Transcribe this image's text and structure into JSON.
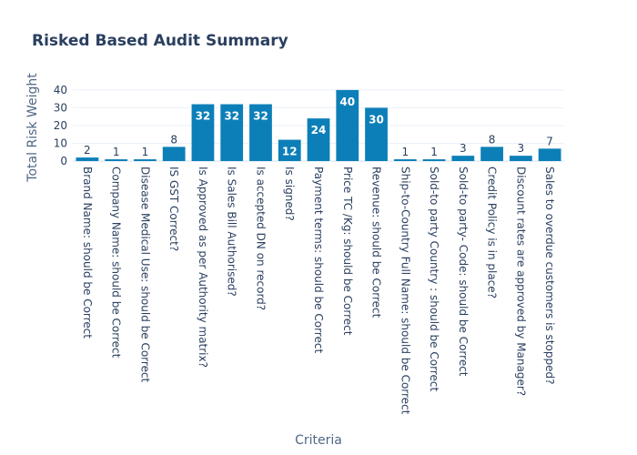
{
  "chart_data": {
    "type": "bar",
    "title": "Risked Based Audit Summary",
    "xlabel": "Criteria",
    "ylabel": "Total Risk Weight",
    "ylim": [
      0,
      42
    ],
    "yticks": [
      0,
      10,
      20,
      30,
      40
    ],
    "grid": true,
    "legend": "none",
    "bar_color": "#0d7fb8",
    "categories": [
      "Brand Name: should be Correct",
      "Company Name: should be Correct",
      "Disease Medical Use: should be Correct",
      "IS GST Correct?",
      "Is Approved as per Authority matrix?",
      "Is Sales Bill Authorised?",
      "Is accepted DN on record?",
      "Is signed?",
      "Payment terms: should be Correct",
      "Price TC /Kg: should be Correct",
      "Revenue: should be Correct",
      "Ship-to-Country Full Name: should be Correct",
      "Sold-to party Country : should be Correct",
      "Sold-to party- Code: should be Correct",
      "Credit Policy is in place?",
      "Discount rates are approved by Manager?",
      "Sales to overdue customers is stopped?"
    ],
    "values": [
      2,
      1,
      1,
      8,
      32,
      32,
      32,
      12,
      24,
      40,
      30,
      1,
      1,
      3,
      8,
      3,
      7
    ]
  }
}
